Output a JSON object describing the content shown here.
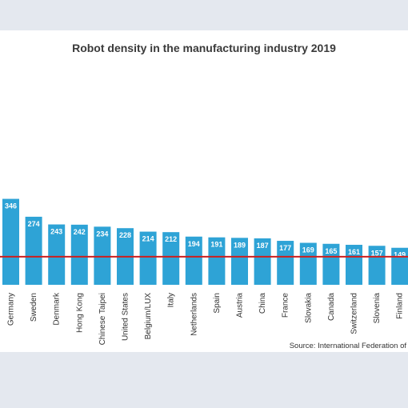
{
  "chart_data": {
    "type": "bar",
    "title": "Robot density in the manufacturing industry 2019",
    "source": "Source: International Federation of",
    "categories": [
      "Germany",
      "Sweden",
      "Denmark",
      "Hong Kong",
      "Chinese Taipei",
      "United States",
      "Belgium/LUX",
      "Italy",
      "Netherlands",
      "Spain",
      "Austria",
      "China",
      "France",
      "Slovakia",
      "Canada",
      "Switzerland",
      "Slovenia",
      "Finland"
    ],
    "values": [
      346,
      274,
      243,
      242,
      234,
      228,
      214,
      212,
      194,
      191,
      189,
      187,
      177,
      169,
      165,
      161,
      157,
      149
    ],
    "reference_line": 113,
    "ylim": [
      0,
      360
    ],
    "grid": false,
    "legend": "none",
    "colors": {
      "bar": "#2ea3d6",
      "reference_line": "#cc1f1f",
      "label": "#ffffff",
      "ticks": "#333333"
    }
  }
}
